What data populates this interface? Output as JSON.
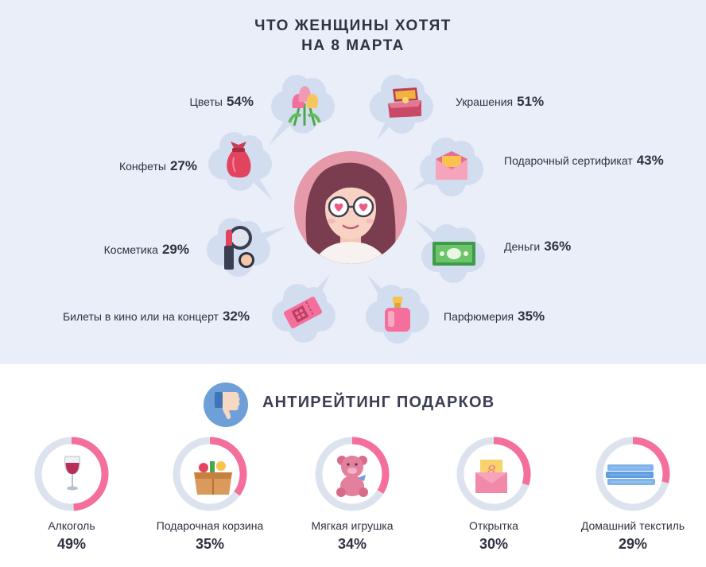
{
  "title": {
    "line1": "ЧТО ЖЕНЩИНЫ ХОТЯТ",
    "line2": "НА 8 МАРТА"
  },
  "wishes": [
    {
      "name": "Цветы",
      "pct": "54%",
      "icon": "flowers-icon"
    },
    {
      "name": "Конфеты",
      "pct": "27%",
      "icon": "candy-icon"
    },
    {
      "name": "Косметика",
      "pct": "29%",
      "icon": "cosmetics-icon"
    },
    {
      "name": "Билеты в кино или на концерт",
      "pct": "32%",
      "icon": "ticket-icon"
    },
    {
      "name": "Украшения",
      "pct": "51%",
      "icon": "jewelry-box-icon"
    },
    {
      "name": "Подарочный сертификат",
      "pct": "43%",
      "icon": "envelope-icon"
    },
    {
      "name": "Деньги",
      "pct": "36%",
      "icon": "money-icon"
    },
    {
      "name": "Парфюмерия",
      "pct": "35%",
      "icon": "perfume-icon"
    }
  ],
  "antirating": {
    "title": "АНТИРЕЙТИНГ ПОДАРКОВ",
    "icon": "thumbs-down-icon",
    "items": [
      {
        "name": "Алкоголь",
        "pct": "49%",
        "icon": "wine-glass-icon"
      },
      {
        "name": "Подарочная корзина",
        "pct": "35%",
        "icon": "gift-basket-icon"
      },
      {
        "name": "Мягкая игрушка",
        "pct": "34%",
        "icon": "teddy-bear-icon"
      },
      {
        "name": "Открытка",
        "pct": "30%",
        "icon": "greeting-card-icon"
      },
      {
        "name": "Домашний текстиль",
        "pct": "29%",
        "icon": "towels-icon"
      }
    ]
  },
  "colors": {
    "bubble": "#d3ddf0",
    "ring": "#dde3ee",
    "accent": "#f46f9b",
    "background": "#e9eef8"
  },
  "chart_data": [
    {
      "type": "bar",
      "title": "ЧТО ЖЕНЩИНЫ ХОТЯТ НА 8 МАРТА",
      "categories": [
        "Цветы",
        "Украшения",
        "Подарочный сертификат",
        "Деньги",
        "Парфюмерия",
        "Билеты в кино или на концерт",
        "Косметика",
        "Конфеты"
      ],
      "values": [
        54,
        51,
        43,
        36,
        35,
        32,
        29,
        27
      ]
    },
    {
      "type": "pie",
      "title": "АНТИРЕЙТИНГ ПОДАРКОВ",
      "categories": [
        "Алкоголь",
        "Подарочная корзина",
        "Мягкая игрушка",
        "Открытка",
        "Домашний текстиль"
      ],
      "values": [
        49,
        35,
        34,
        30,
        29
      ]
    }
  ]
}
